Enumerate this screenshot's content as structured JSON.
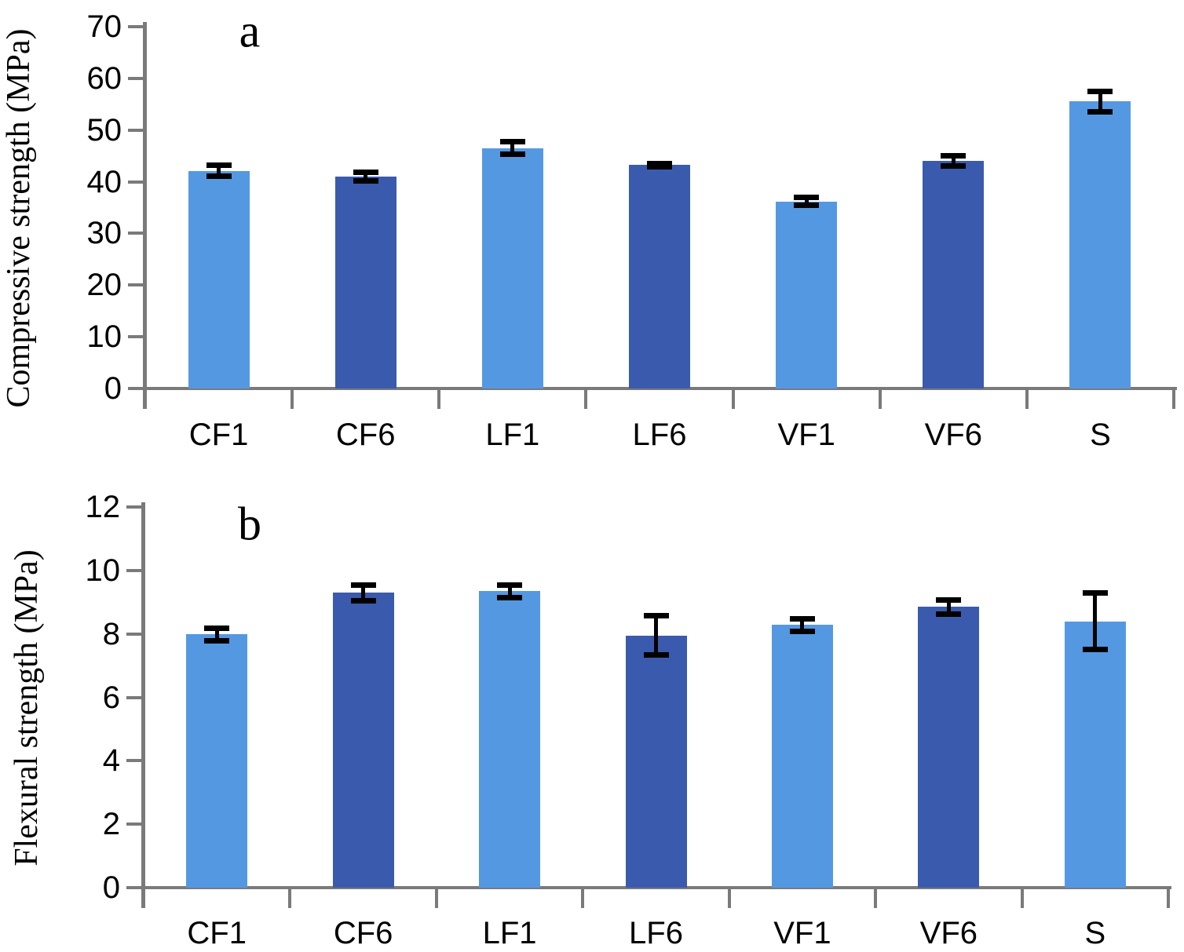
{
  "figure": {
    "background": "#ffffff",
    "axis_color": "#7a7a7a",
    "error_bar_color": "#000000",
    "bar_colors": {
      "light": "#5598E2",
      "dark": "#3A5BAD"
    }
  },
  "chart_data": [
    {
      "type": "bar",
      "panel_label": "a",
      "title": "",
      "xlabel": "",
      "ylabel": "Compressive strength (MPa)",
      "ylim": [
        0,
        70
      ],
      "yticks": [
        0,
        10,
        20,
        30,
        40,
        50,
        60,
        70
      ],
      "grid": false,
      "legend": "none",
      "categories": [
        "CF1",
        "CF6",
        "LF1",
        "LF6",
        "VF1",
        "VF6",
        "S"
      ],
      "values": [
        42.1,
        41.0,
        46.5,
        43.2,
        36.2,
        44.0,
        55.5
      ],
      "errors": [
        1.1,
        0.9,
        1.2,
        0.35,
        0.7,
        1.0,
        2.0
      ],
      "bar_color_pattern": [
        "light",
        "dark",
        "light",
        "dark",
        "light",
        "dark",
        "light"
      ]
    },
    {
      "type": "bar",
      "panel_label": "b",
      "title": "",
      "xlabel": "",
      "ylabel": "Flexural strength (MPa)",
      "ylim": [
        0,
        12
      ],
      "yticks": [
        0,
        2,
        4,
        6,
        8,
        10,
        12
      ],
      "grid": false,
      "legend": "none",
      "categories": [
        "CF1",
        "CF6",
        "LF1",
        "LF6",
        "VF1",
        "VF6",
        "S"
      ],
      "values": [
        7.98,
        9.3,
        9.35,
        7.95,
        8.28,
        8.85,
        8.4
      ],
      "errors": [
        0.2,
        0.25,
        0.2,
        0.62,
        0.2,
        0.22,
        0.9
      ],
      "bar_color_pattern": [
        "light",
        "dark",
        "light",
        "dark",
        "light",
        "dark",
        "light"
      ]
    }
  ]
}
